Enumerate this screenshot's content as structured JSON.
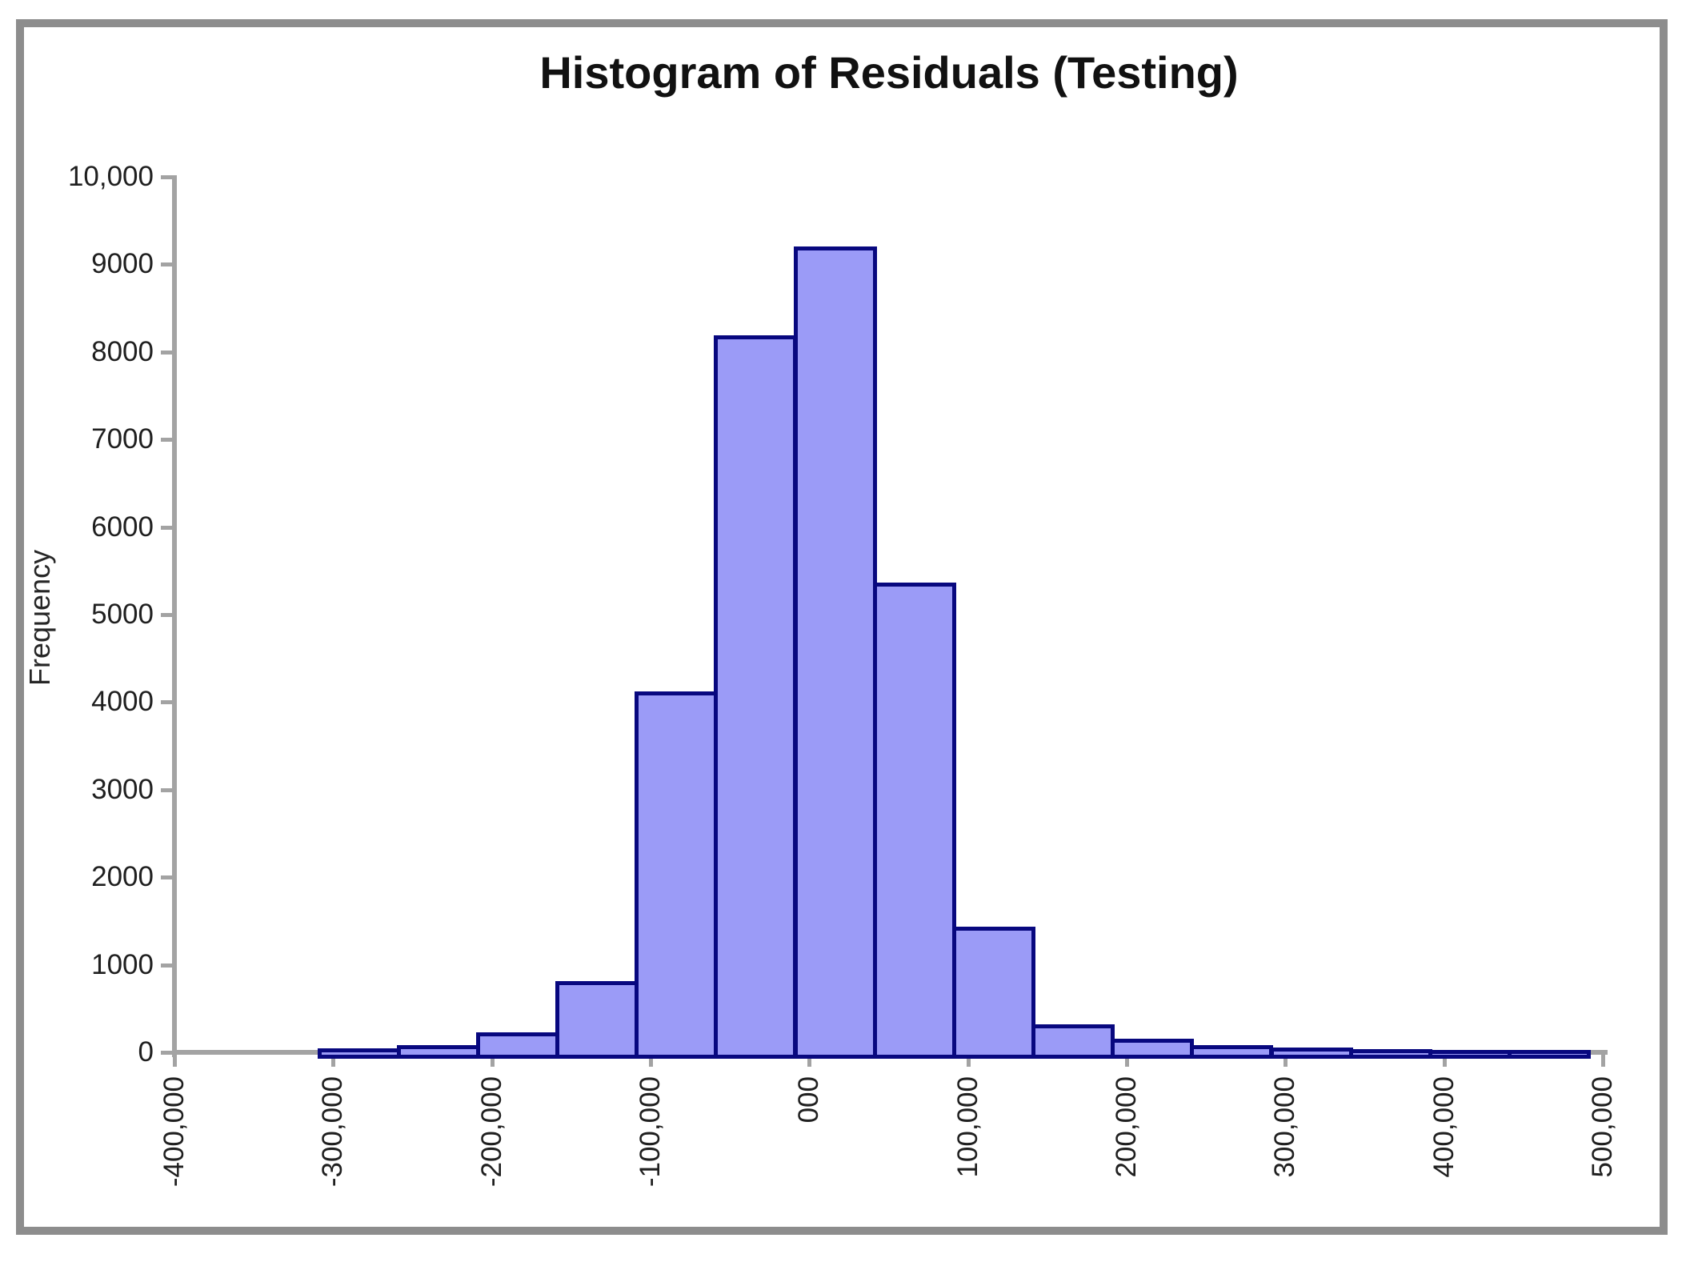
{
  "title": "Histogram of Residuals (Testing)",
  "y_axis": {
    "label": "Frequency",
    "tick_labels": [
      "10,000",
      "9000",
      "8000",
      "7000",
      "6000",
      "5000",
      "4000",
      "3000",
      "2000",
      "1000",
      "0"
    ],
    "min": 0,
    "max": 10000
  },
  "x_axis": {
    "tick_labels": [
      "-400,000",
      "-300,000",
      "-200,000",
      "-100,000",
      "000",
      "100,000",
      "200,000",
      "300,000",
      "400,000",
      "500,000"
    ],
    "min": -400000,
    "max": 500000
  },
  "chart_data": {
    "type": "bar",
    "subtype": "histogram",
    "title": "Histogram of Residuals (Testing)",
    "xlabel": "",
    "ylabel": "Frequency",
    "x_tick_labels": [
      "-400,000",
      "-300,000",
      "-200,000",
      "-100,000",
      "000",
      "100,000",
      "200,000",
      "300,000",
      "400,000",
      "500,000"
    ],
    "x_tick_values": [
      -400000,
      -300000,
      -200000,
      -100000,
      0,
      100000,
      200000,
      300000,
      400000,
      500000
    ],
    "y_tick_labels": [
      "0",
      "1000",
      "2000",
      "3000",
      "4000",
      "5000",
      "6000",
      "7000",
      "8000",
      "9000",
      "10,000"
    ],
    "y_tick_values": [
      0,
      1000,
      2000,
      3000,
      4000,
      5000,
      6000,
      7000,
      8000,
      9000,
      10000
    ],
    "bin_start": -310000,
    "bin_width": 50000,
    "values": [
      30,
      65,
      210,
      795,
      4100,
      8170,
      9190,
      5350,
      1420,
      300,
      140,
      65,
      40,
      20,
      12,
      6
    ],
    "xlim": [
      -400000,
      500000
    ],
    "ylim": [
      0,
      10000
    ],
    "grid": false,
    "legend": "none",
    "colors": {
      "bar_fill": "#9b9bf7",
      "bar_border": "#08087f",
      "axis": "#a3a3a3",
      "frame": "#8d8d8d",
      "text": "#1f1f1f"
    }
  }
}
